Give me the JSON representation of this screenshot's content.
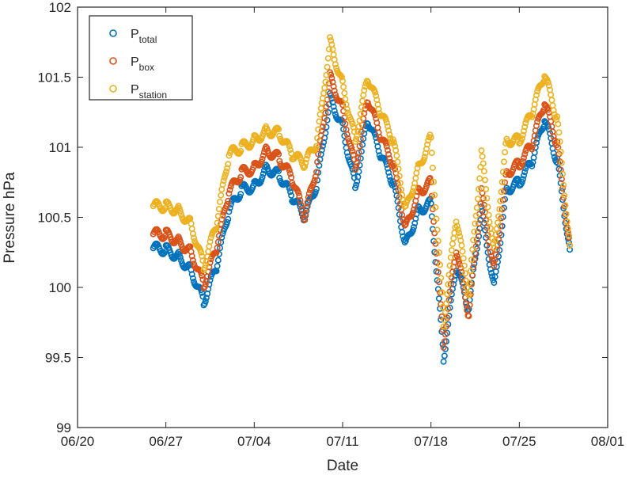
{
  "chart_data": {
    "type": "scatter",
    "title": "",
    "xlabel": "Date",
    "ylabel": "Pressure hPa",
    "xlim": [
      "2016-06-20",
      "2016-08-01"
    ],
    "ylim": [
      99,
      102
    ],
    "x_ticks": [
      {
        "date": "2016-06-20",
        "label": "06/20"
      },
      {
        "date": "2016-06-27",
        "label": "06/27"
      },
      {
        "date": "2016-07-04",
        "label": "07/04"
      },
      {
        "date": "2016-07-11",
        "label": "07/11"
      },
      {
        "date": "2016-07-18",
        "label": "07/18"
      },
      {
        "date": "2016-07-25",
        "label": "07/25"
      },
      {
        "date": "2016-08-01",
        "label": "08/01"
      }
    ],
    "y_ticks": [
      {
        "value": 99,
        "label": "99"
      },
      {
        "value": 99.5,
        "label": "99.5"
      },
      {
        "value": 100,
        "label": "100"
      },
      {
        "value": 100.5,
        "label": "100.5"
      },
      {
        "value": 101,
        "label": "101"
      },
      {
        "value": 101.5,
        "label": "101.5"
      },
      {
        "value": 102,
        "label": "102"
      }
    ],
    "grid": false,
    "legend_position": "top-left",
    "series": [
      {
        "name_main": "P",
        "name_sub": "total",
        "color": "#0072BD",
        "points": [
          [
            "2016-06-26",
            100.28
          ],
          [
            "2016-06-27",
            100.27
          ],
          [
            "2016-06-28",
            100.22
          ],
          [
            "2016-06-29",
            100.12
          ],
          [
            "2016-06-30",
            99.9
          ],
          [
            "2016-07-01",
            100.15
          ],
          [
            "2016-07-02",
            100.55
          ],
          [
            "2016-07-03",
            100.7
          ],
          [
            "2016-07-04",
            100.72
          ],
          [
            "2016-07-05",
            100.85
          ],
          [
            "2016-07-06",
            100.8
          ],
          [
            "2016-07-07",
            100.65
          ],
          [
            "2016-07-08",
            100.5
          ],
          [
            "2016-07-09",
            100.75
          ],
          [
            "2016-07-10",
            101.35
          ],
          [
            "2016-07-11",
            101.15
          ],
          [
            "2016-07-12",
            100.72
          ],
          [
            "2016-07-13",
            101.2
          ],
          [
            "2016-07-14",
            100.95
          ],
          [
            "2016-07-15",
            100.75
          ],
          [
            "2016-07-16",
            100.3
          ],
          [
            "2016-07-17",
            100.55
          ],
          [
            "2016-07-18",
            100.6
          ],
          [
            "2016-07-19",
            99.5
          ],
          [
            "2016-07-20",
            100.15
          ],
          [
            "2016-07-21",
            99.85
          ],
          [
            "2016-07-22",
            100.55
          ],
          [
            "2016-07-23",
            100.0
          ],
          [
            "2016-07-24",
            100.7
          ],
          [
            "2016-07-25",
            100.75
          ],
          [
            "2016-07-26",
            100.9
          ],
          [
            "2016-07-27",
            101.2
          ],
          [
            "2016-07-28",
            100.9
          ],
          [
            "2016-07-29",
            100.27
          ]
        ]
      },
      {
        "name_main": "P",
        "name_sub": "box",
        "color": "#D95319",
        "points": [
          [
            "2016-06-26",
            100.38
          ],
          [
            "2016-06-27",
            100.38
          ],
          [
            "2016-06-28",
            100.33
          ],
          [
            "2016-06-29",
            100.25
          ],
          [
            "2016-06-30",
            100.02
          ],
          [
            "2016-07-01",
            100.28
          ],
          [
            "2016-07-02",
            100.68
          ],
          [
            "2016-07-03",
            100.82
          ],
          [
            "2016-07-04",
            100.85
          ],
          [
            "2016-07-05",
            100.98
          ],
          [
            "2016-07-06",
            100.92
          ],
          [
            "2016-07-07",
            100.78
          ],
          [
            "2016-07-08",
            100.5
          ],
          [
            "2016-07-09",
            100.88
          ],
          [
            "2016-07-10",
            101.5
          ],
          [
            "2016-07-11",
            101.28
          ],
          [
            "2016-07-12",
            100.85
          ],
          [
            "2016-07-13",
            101.35
          ],
          [
            "2016-07-14",
            101.08
          ],
          [
            "2016-07-15",
            100.88
          ],
          [
            "2016-07-16",
            100.42
          ],
          [
            "2016-07-17",
            100.68
          ],
          [
            "2016-07-18",
            100.75
          ],
          [
            "2016-07-19",
            99.6
          ],
          [
            "2016-07-20",
            100.28
          ],
          [
            "2016-07-21",
            99.8
          ],
          [
            "2016-07-22",
            100.68
          ],
          [
            "2016-07-23",
            100.12
          ],
          [
            "2016-07-24",
            100.82
          ],
          [
            "2016-07-25",
            100.88
          ],
          [
            "2016-07-26",
            101.02
          ],
          [
            "2016-07-27",
            101.32
          ],
          [
            "2016-07-28",
            101.02
          ],
          [
            "2016-07-29",
            100.3
          ]
        ]
      },
      {
        "name_main": "P",
        "name_sub": "station",
        "color": "#EDB120",
        "points": [
          [
            "2016-06-26",
            100.58
          ],
          [
            "2016-06-27",
            100.58
          ],
          [
            "2016-06-28",
            100.55
          ],
          [
            "2016-06-29",
            100.45
          ],
          [
            "2016-06-30",
            100.15
          ],
          [
            "2016-07-01",
            100.45
          ],
          [
            "2016-07-02",
            100.95
          ],
          [
            "2016-07-03",
            101.0
          ],
          [
            "2016-07-04",
            101.05
          ],
          [
            "2016-07-05",
            101.12
          ],
          [
            "2016-07-06",
            101.1
          ],
          [
            "2016-07-07",
            100.95
          ],
          [
            "2016-07-08",
            100.88
          ],
          [
            "2016-07-09",
            101.05
          ],
          [
            "2016-07-10",
            101.75
          ],
          [
            "2016-07-11",
            101.45
          ],
          [
            "2016-07-12",
            101.05
          ],
          [
            "2016-07-13",
            101.5
          ],
          [
            "2016-07-14",
            101.25
          ],
          [
            "2016-07-15",
            101.05
          ],
          [
            "2016-07-16",
            100.55
          ],
          [
            "2016-07-17",
            100.85
          ],
          [
            "2016-07-18",
            101.07
          ],
          [
            "2016-07-19",
            99.75
          ],
          [
            "2016-07-20",
            100.5
          ],
          [
            "2016-07-21",
            99.95
          ],
          [
            "2016-07-22",
            100.95
          ],
          [
            "2016-07-23",
            100.25
          ],
          [
            "2016-07-24",
            101.05
          ],
          [
            "2016-07-25",
            101.05
          ],
          [
            "2016-07-26",
            101.25
          ],
          [
            "2016-07-27",
            101.52
          ],
          [
            "2016-07-28",
            101.2
          ],
          [
            "2016-07-29",
            100.3
          ]
        ]
      }
    ]
  }
}
